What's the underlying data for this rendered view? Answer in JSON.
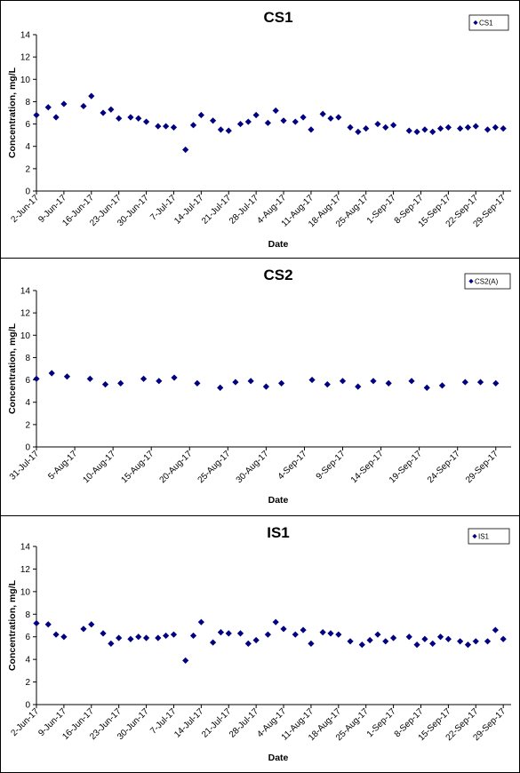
{
  "chart_data": [
    {
      "type": "scatter",
      "title": "CS1",
      "xlabel": "Date",
      "ylabel": "Concentration, mg/L",
      "ylim": [
        0,
        14
      ],
      "yticks": [
        "0",
        "2",
        "4",
        "6",
        "8",
        "10",
        "12",
        "14"
      ],
      "xlim": [
        "2017-06-02",
        "2017-10-01"
      ],
      "xticks": [
        {
          "date": "2017-06-02",
          "label": "2-Jun-17"
        },
        {
          "date": "2017-06-09",
          "label": "9-Jun-17"
        },
        {
          "date": "2017-06-16",
          "label": "16-Jun-17"
        },
        {
          "date": "2017-06-23",
          "label": "23-Jun-17"
        },
        {
          "date": "2017-06-30",
          "label": "30-Jun-17"
        },
        {
          "date": "2017-07-07",
          "label": "7-Jul-17"
        },
        {
          "date": "2017-07-14",
          "label": "14-Jul-17"
        },
        {
          "date": "2017-07-21",
          "label": "21-Jul-17"
        },
        {
          "date": "2017-07-28",
          "label": "28-Jul-17"
        },
        {
          "date": "2017-08-04",
          "label": "4-Aug-17"
        },
        {
          "date": "2017-08-11",
          "label": "11-Aug-17"
        },
        {
          "date": "2017-08-18",
          "label": "18-Aug-17"
        },
        {
          "date": "2017-08-25",
          "label": "25-Aug-17"
        },
        {
          "date": "2017-09-01",
          "label": "1-Sep-17"
        },
        {
          "date": "2017-09-08",
          "label": "8-Sep-17"
        },
        {
          "date": "2017-09-15",
          "label": "15-Sep-17"
        },
        {
          "date": "2017-09-22",
          "label": "22-Sep-17"
        },
        {
          "date": "2017-09-29",
          "label": "29-Sep-17"
        }
      ],
      "grid": false,
      "legend_position": "top-right",
      "series": [
        {
          "name": "CS1",
          "color": "#000080",
          "marker": "diamond",
          "points": [
            [
              "2017-06-02",
              6.8
            ],
            [
              "2017-06-05",
              7.5
            ],
            [
              "2017-06-07",
              6.6
            ],
            [
              "2017-06-09",
              7.8
            ],
            [
              "2017-06-14",
              7.6
            ],
            [
              "2017-06-16",
              8.5
            ],
            [
              "2017-06-19",
              7.0
            ],
            [
              "2017-06-21",
              7.3
            ],
            [
              "2017-06-23",
              6.5
            ],
            [
              "2017-06-26",
              6.6
            ],
            [
              "2017-06-28",
              6.5
            ],
            [
              "2017-06-30",
              6.2
            ],
            [
              "2017-07-03",
              5.8
            ],
            [
              "2017-07-05",
              5.8
            ],
            [
              "2017-07-07",
              5.7
            ],
            [
              "2017-07-10",
              3.7
            ],
            [
              "2017-07-12",
              5.9
            ],
            [
              "2017-07-14",
              6.8
            ],
            [
              "2017-07-17",
              6.3
            ],
            [
              "2017-07-19",
              5.5
            ],
            [
              "2017-07-21",
              5.4
            ],
            [
              "2017-07-24",
              6.0
            ],
            [
              "2017-07-26",
              6.2
            ],
            [
              "2017-07-28",
              6.8
            ],
            [
              "2017-07-31",
              6.1
            ],
            [
              "2017-08-02",
              7.2
            ],
            [
              "2017-08-04",
              6.3
            ],
            [
              "2017-08-07",
              6.2
            ],
            [
              "2017-08-09",
              6.6
            ],
            [
              "2017-08-11",
              5.5
            ],
            [
              "2017-08-14",
              6.9
            ],
            [
              "2017-08-16",
              6.5
            ],
            [
              "2017-08-18",
              6.6
            ],
            [
              "2017-08-21",
              5.7
            ],
            [
              "2017-08-23",
              5.3
            ],
            [
              "2017-08-25",
              5.6
            ],
            [
              "2017-08-28",
              6.0
            ],
            [
              "2017-08-30",
              5.7
            ],
            [
              "2017-09-01",
              5.9
            ],
            [
              "2017-09-05",
              5.4
            ],
            [
              "2017-09-07",
              5.3
            ],
            [
              "2017-09-09",
              5.5
            ],
            [
              "2017-09-11",
              5.3
            ],
            [
              "2017-09-13",
              5.6
            ],
            [
              "2017-09-15",
              5.7
            ],
            [
              "2017-09-18",
              5.6
            ],
            [
              "2017-09-20",
              5.7
            ],
            [
              "2017-09-22",
              5.8
            ],
            [
              "2017-09-25",
              5.5
            ],
            [
              "2017-09-27",
              5.7
            ],
            [
              "2017-09-29",
              5.6
            ]
          ]
        }
      ]
    },
    {
      "type": "scatter",
      "title": "CS2",
      "xlabel": "Date",
      "ylabel": "Concentration, mg/L",
      "ylim": [
        0,
        14
      ],
      "yticks": [
        "0",
        "2",
        "4",
        "6",
        "8",
        "10",
        "12",
        "14"
      ],
      "xlim": [
        "2017-07-31",
        "2017-10-01"
      ],
      "xticks": [
        {
          "date": "2017-07-31",
          "label": "31-Jul-17"
        },
        {
          "date": "2017-08-05",
          "label": "5-Aug-17"
        },
        {
          "date": "2017-08-10",
          "label": "10-Aug-17"
        },
        {
          "date": "2017-08-15",
          "label": "15-Aug-17"
        },
        {
          "date": "2017-08-20",
          "label": "20-Aug-17"
        },
        {
          "date": "2017-08-25",
          "label": "25-Aug-17"
        },
        {
          "date": "2017-08-30",
          "label": "30-Aug-17"
        },
        {
          "date": "2017-09-04",
          "label": "4-Sep-17"
        },
        {
          "date": "2017-09-09",
          "label": "9-Sep-17"
        },
        {
          "date": "2017-09-14",
          "label": "14-Sep-17"
        },
        {
          "date": "2017-09-19",
          "label": "19-Sep-17"
        },
        {
          "date": "2017-09-24",
          "label": "24-Sep-17"
        },
        {
          "date": "2017-09-29",
          "label": "29-Sep-17"
        }
      ],
      "grid": false,
      "legend_position": "top-right",
      "series": [
        {
          "name": "CS2(A)",
          "color": "#000080",
          "marker": "diamond",
          "points": [
            [
              "2017-07-31",
              6.1
            ],
            [
              "2017-08-02",
              6.6
            ],
            [
              "2017-08-04",
              6.3
            ],
            [
              "2017-08-07",
              6.1
            ],
            [
              "2017-08-09",
              5.6
            ],
            [
              "2017-08-11",
              5.7
            ],
            [
              "2017-08-14",
              6.1
            ],
            [
              "2017-08-16",
              5.9
            ],
            [
              "2017-08-18",
              6.2
            ],
            [
              "2017-08-21",
              5.7
            ],
            [
              "2017-08-24",
              5.3
            ],
            [
              "2017-08-26",
              5.8
            ],
            [
              "2017-08-28",
              5.9
            ],
            [
              "2017-08-30",
              5.4
            ],
            [
              "2017-09-01",
              5.7
            ],
            [
              "2017-09-05",
              6.0
            ],
            [
              "2017-09-07",
              5.6
            ],
            [
              "2017-09-09",
              5.9
            ],
            [
              "2017-09-11",
              5.4
            ],
            [
              "2017-09-13",
              5.9
            ],
            [
              "2017-09-15",
              5.7
            ],
            [
              "2017-09-18",
              5.9
            ],
            [
              "2017-09-20",
              5.3
            ],
            [
              "2017-09-22",
              5.5
            ],
            [
              "2017-09-25",
              5.8
            ],
            [
              "2017-09-27",
              5.8
            ],
            [
              "2017-09-29",
              5.7
            ]
          ]
        }
      ]
    },
    {
      "type": "scatter",
      "title": "IS1",
      "xlabel": "Date",
      "ylabel": "Concentration, mg/L",
      "ylim": [
        0,
        14
      ],
      "yticks": [
        "0",
        "2",
        "4",
        "6",
        "8",
        "10",
        "12",
        "14"
      ],
      "xlim": [
        "2017-06-02",
        "2017-10-01"
      ],
      "xticks": [
        {
          "date": "2017-06-02",
          "label": "2-Jun-17"
        },
        {
          "date": "2017-06-09",
          "label": "9-Jun-17"
        },
        {
          "date": "2017-06-16",
          "label": "16-Jun-17"
        },
        {
          "date": "2017-06-23",
          "label": "23-Jun-17"
        },
        {
          "date": "2017-06-30",
          "label": "30-Jun-17"
        },
        {
          "date": "2017-07-07",
          "label": "7-Jul-17"
        },
        {
          "date": "2017-07-14",
          "label": "14-Jul-17"
        },
        {
          "date": "2017-07-21",
          "label": "21-Jul-17"
        },
        {
          "date": "2017-07-28",
          "label": "28-Jul-17"
        },
        {
          "date": "2017-08-04",
          "label": "4-Aug-17"
        },
        {
          "date": "2017-08-11",
          "label": "11-Aug-17"
        },
        {
          "date": "2017-08-18",
          "label": "18-Aug-17"
        },
        {
          "date": "2017-08-25",
          "label": "25-Aug-17"
        },
        {
          "date": "2017-09-01",
          "label": "1-Sep-17"
        },
        {
          "date": "2017-09-08",
          "label": "8-Sep-17"
        },
        {
          "date": "2017-09-15",
          "label": "15-Sep-17"
        },
        {
          "date": "2017-09-22",
          "label": "22-Sep-17"
        },
        {
          "date": "2017-09-29",
          "label": "29-Sep-17"
        }
      ],
      "grid": false,
      "legend_position": "top-right",
      "series": [
        {
          "name": "IS1",
          "color": "#000080",
          "marker": "diamond",
          "points": [
            [
              "2017-06-02",
              7.2
            ],
            [
              "2017-06-05",
              7.1
            ],
            [
              "2017-06-07",
              6.2
            ],
            [
              "2017-06-09",
              6.0
            ],
            [
              "2017-06-14",
              6.7
            ],
            [
              "2017-06-16",
              7.1
            ],
            [
              "2017-06-19",
              6.3
            ],
            [
              "2017-06-21",
              5.4
            ],
            [
              "2017-06-23",
              5.9
            ],
            [
              "2017-06-26",
              5.8
            ],
            [
              "2017-06-28",
              6.0
            ],
            [
              "2017-06-30",
              5.9
            ],
            [
              "2017-07-03",
              5.9
            ],
            [
              "2017-07-05",
              6.1
            ],
            [
              "2017-07-07",
              6.2
            ],
            [
              "2017-07-10",
              3.9
            ],
            [
              "2017-07-12",
              6.1
            ],
            [
              "2017-07-14",
              7.3
            ],
            [
              "2017-07-17",
              5.5
            ],
            [
              "2017-07-19",
              6.4
            ],
            [
              "2017-07-21",
              6.3
            ],
            [
              "2017-07-24",
              6.3
            ],
            [
              "2017-07-26",
              5.4
            ],
            [
              "2017-07-28",
              5.7
            ],
            [
              "2017-07-31",
              6.2
            ],
            [
              "2017-08-02",
              7.3
            ],
            [
              "2017-08-04",
              6.7
            ],
            [
              "2017-08-07",
              6.2
            ],
            [
              "2017-08-09",
              6.6
            ],
            [
              "2017-08-11",
              5.4
            ],
            [
              "2017-08-14",
              6.4
            ],
            [
              "2017-08-16",
              6.3
            ],
            [
              "2017-08-18",
              6.2
            ],
            [
              "2017-08-21",
              5.6
            ],
            [
              "2017-08-24",
              5.3
            ],
            [
              "2017-08-26",
              5.7
            ],
            [
              "2017-08-28",
              6.2
            ],
            [
              "2017-08-30",
              5.6
            ],
            [
              "2017-09-01",
              5.9
            ],
            [
              "2017-09-05",
              6.0
            ],
            [
              "2017-09-07",
              5.3
            ],
            [
              "2017-09-09",
              5.8
            ],
            [
              "2017-09-11",
              5.4
            ],
            [
              "2017-09-13",
              6.0
            ],
            [
              "2017-09-15",
              5.8
            ],
            [
              "2017-09-18",
              5.6
            ],
            [
              "2017-09-20",
              5.3
            ],
            [
              "2017-09-22",
              5.6
            ],
            [
              "2017-09-25",
              5.6
            ],
            [
              "2017-09-27",
              6.6
            ],
            [
              "2017-09-29",
              5.8
            ]
          ]
        }
      ]
    }
  ]
}
